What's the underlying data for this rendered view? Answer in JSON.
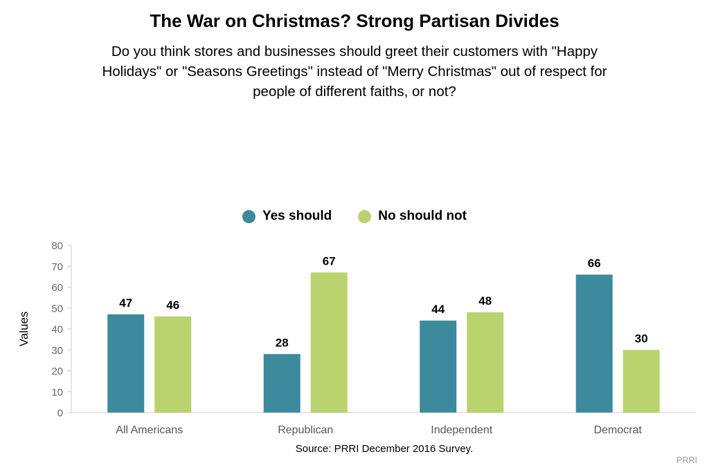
{
  "header": {
    "title": "The War on Christmas? Strong Partisan Divides",
    "subtitle": "Do you think stores and businesses should greet their customers with \"Happy\nHolidays\" or \"Seasons Greetings\" instead of \"Merry Christmas\" out of respect for\npeople of different faiths, or not?"
  },
  "chart_data": {
    "type": "bar",
    "categories": [
      "All Americans",
      "Republican",
      "Independent",
      "Democrat"
    ],
    "series": [
      {
        "name": "Yes should",
        "color": "#3d8a9c",
        "values": [
          47,
          28,
          44,
          66
        ]
      },
      {
        "name": "No should not",
        "color": "#bad36e",
        "values": [
          46,
          67,
          48,
          30
        ]
      }
    ],
    "ylabel": "Values",
    "ylim": [
      0,
      80
    ],
    "yticks": [
      0,
      10,
      20,
      30,
      40,
      50,
      60,
      70,
      80
    ],
    "grid": false,
    "legend_position": "top-center"
  },
  "footer": {
    "source": "Source: PRRI December 2016 Survey.",
    "credit": "PRRI"
  }
}
